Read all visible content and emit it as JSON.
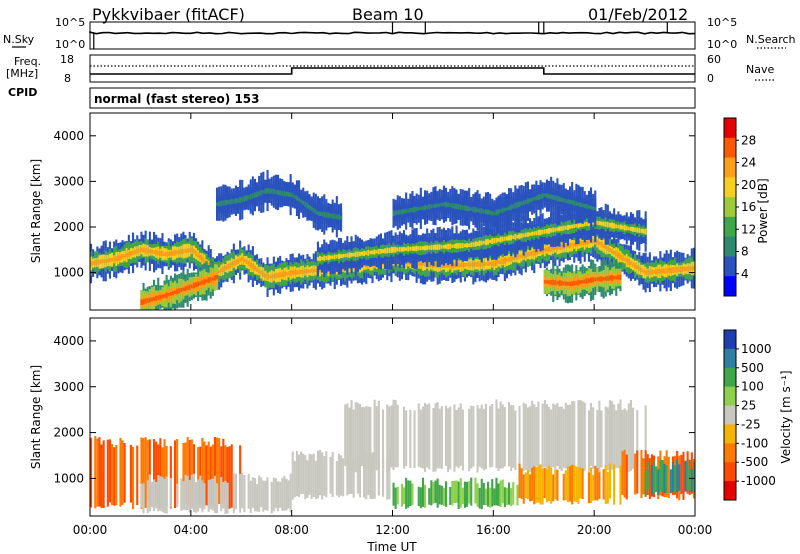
{
  "header": {
    "station": "Pykkvibaer (fitACF)",
    "beam": "Beam 10",
    "date": "01/Feb/2012"
  },
  "noise_panel": {
    "left_label": "N.Sky",
    "right_label": "N.Search",
    "left_ticks": [
      "10^5",
      "10^0"
    ],
    "right_ticks": [
      "10^5",
      "10^0"
    ],
    "spike_hours": [
      13.3,
      18.0,
      22.9,
      12.0,
      17.8
    ]
  },
  "freq_panel": {
    "left_label_1": "Freq.",
    "left_label_2": "[MHz]",
    "left_label_3": "CPID",
    "right_label": "Nave",
    "left_ticks": [
      "18",
      "8"
    ],
    "right_ticks": [
      "60",
      "0"
    ],
    "steps": [
      {
        "from_hour": 0,
        "to_hour": 8,
        "level": "low"
      },
      {
        "from_hour": 8,
        "to_hour": 18,
        "level": "high"
      },
      {
        "from_hour": 18,
        "to_hour": 24,
        "level": "low"
      }
    ]
  },
  "cpid_text": "normal (fast stereo) 153",
  "power_panel": {
    "ylabel": "Slant Range [km]",
    "y_ticks": [
      "4000",
      "3000",
      "2000",
      "1000"
    ],
    "colorbar_label": "Power [dB]",
    "colorbar_ticks": [
      "28",
      "24",
      "20",
      "16",
      "12",
      "8",
      "4"
    ],
    "colorbar_colors": [
      "#e60000",
      "#ff5a00",
      "#ff9f1a",
      "#f5d020",
      "#9ccb3c",
      "#3fa64a",
      "#2e8a6e",
      "#2a52be",
      "#0000ff"
    ]
  },
  "velocity_panel": {
    "ylabel": "Slant Range [km]",
    "y_ticks": [
      "4000",
      "3000",
      "2000",
      "1000"
    ],
    "colorbar_label": "Velocity [m s⁻¹]",
    "colorbar_ticks": [
      "1000",
      "500",
      "100",
      "25",
      "-25",
      "-100",
      "-500",
      "-1000"
    ],
    "colorbar_colors": [
      "#1f3fb0",
      "#2e7fa0",
      "#3fa64a",
      "#8fd14f",
      "#c8c8c0",
      "#f5b400",
      "#ff7a00",
      "#ff4a00",
      "#e60000"
    ]
  },
  "x_axis": {
    "label": "Time UT",
    "ticks": [
      "00:00",
      "04:00",
      "08:00",
      "12:00",
      "16:00",
      "20:00",
      "00:00"
    ]
  },
  "chart_data": {
    "type": "heatmap",
    "title": "Pykkvibaer (fitACF) Beam 10 01/Feb/2012",
    "xlabel": "Time UT",
    "ylabel": "Slant Range [km]",
    "xlim_hours": [
      0,
      24
    ],
    "ylim_km": [
      180,
      4500
    ],
    "power_band_db": [
      0,
      30
    ],
    "velocity_range_ms": [
      -1000,
      1000
    ],
    "power_traces": [
      {
        "points": [
          [
            0,
            1200
          ],
          [
            1,
            1300
          ],
          [
            2,
            1500
          ],
          [
            3,
            1400
          ],
          [
            4,
            1500
          ],
          [
            5,
            1000
          ],
          [
            6,
            1300
          ],
          [
            7,
            900
          ],
          [
            8,
            1000
          ],
          [
            10,
            1100
          ],
          [
            12,
            1250
          ],
          [
            14,
            1150
          ],
          [
            16,
            1200
          ],
          [
            18,
            1500
          ],
          [
            20,
            1700
          ],
          [
            22,
            1000
          ],
          [
            24,
            1100
          ]
        ],
        "db": 24
      },
      {
        "points": [
          [
            2,
            350
          ],
          [
            3,
            500
          ],
          [
            4,
            700
          ],
          [
            5,
            900
          ]
        ],
        "db": 28
      },
      {
        "points": [
          [
            9,
            1300
          ],
          [
            12,
            1500
          ],
          [
            15,
            1600
          ],
          [
            18,
            1900
          ],
          [
            20,
            2100
          ],
          [
            22,
            1900
          ]
        ],
        "db": 18
      },
      {
        "points": [
          [
            18,
            800
          ],
          [
            19,
            750
          ],
          [
            20,
            850
          ],
          [
            21,
            900
          ]
        ],
        "db": 28
      },
      {
        "points": [
          [
            12,
            2300
          ],
          [
            14,
            2500
          ],
          [
            16,
            2300
          ],
          [
            18,
            2700
          ],
          [
            20,
            2400
          ]
        ],
        "db": 6
      },
      {
        "points": [
          [
            5,
            2500
          ],
          [
            6,
            2600
          ],
          [
            7,
            2800
          ],
          [
            8,
            2700
          ],
          [
            9,
            2300
          ],
          [
            10,
            2200
          ]
        ],
        "db": 8
      }
    ],
    "velocity_regions": [
      {
        "from_hour": 0,
        "to_hour": 6,
        "range_km": [
          400,
          1800
        ],
        "velocity": -500
      },
      {
        "from_hour": 2,
        "to_hour": 8,
        "range_km": [
          300,
          1000
        ],
        "velocity": 0
      },
      {
        "from_hour": 8,
        "to_hour": 12,
        "range_km": [
          600,
          1500
        ],
        "velocity": 0
      },
      {
        "from_hour": 10,
        "to_hour": 22,
        "range_km": [
          1200,
          2600
        ],
        "velocity": 0
      },
      {
        "from_hour": 12,
        "to_hour": 17,
        "range_km": [
          400,
          900
        ],
        "velocity": 100
      },
      {
        "from_hour": 17,
        "to_hour": 21,
        "range_km": [
          500,
          1200
        ],
        "velocity": -100
      },
      {
        "from_hour": 21,
        "to_hour": 24,
        "range_km": [
          600,
          1500
        ],
        "velocity": -500
      },
      {
        "from_hour": 22,
        "to_hour": 24,
        "range_km": [
          700,
          1300
        ],
        "velocity": 500
      }
    ]
  }
}
